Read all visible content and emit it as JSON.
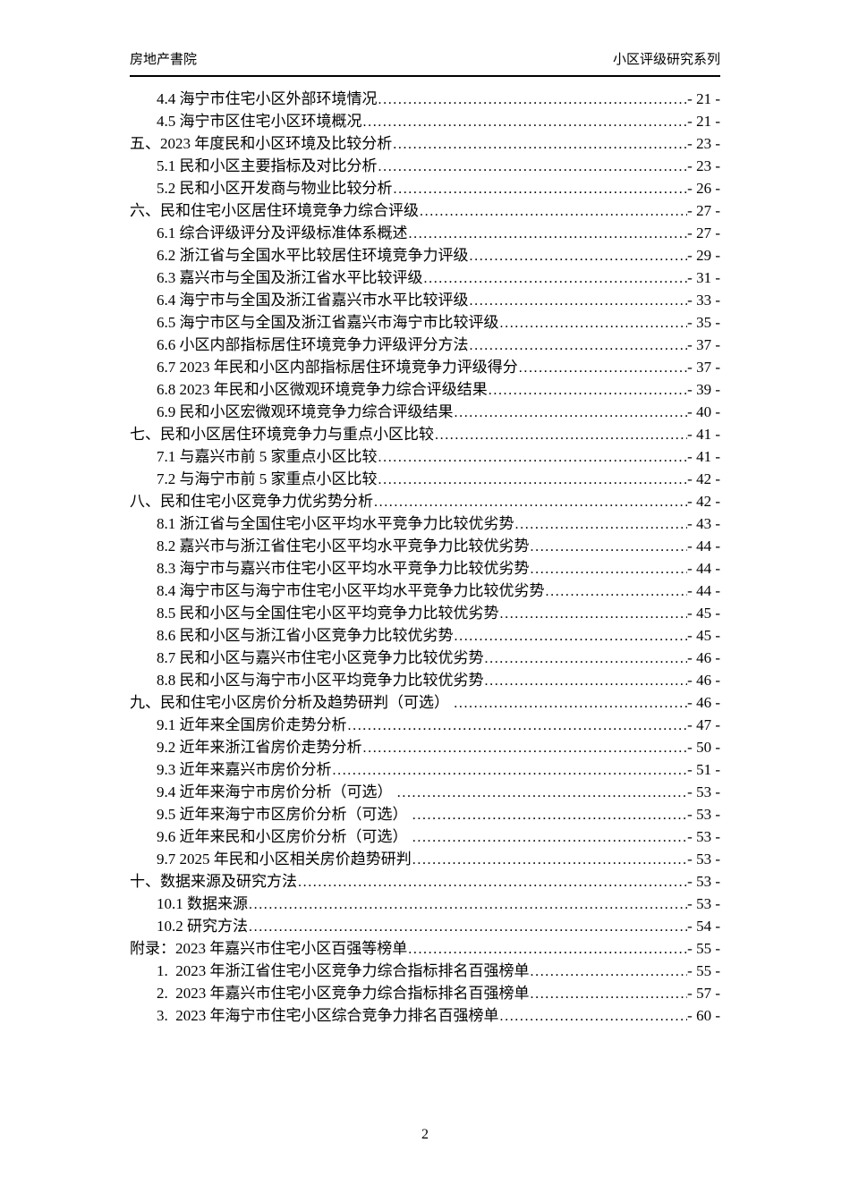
{
  "header": {
    "left": "房地产書院",
    "right": "小区评级研究系列"
  },
  "toc": {
    "entries": [
      {
        "label": "4.4 海宁市住宅小区外部环境情况",
        "page": "- 21 -",
        "level": "sub"
      },
      {
        "label": "4.5 海宁市区住宅小区环境概况",
        "page": "- 21 -",
        "level": "sub"
      },
      {
        "label": "五、2023 年度民和小区环境及比较分析",
        "page": "- 23 -",
        "level": "top"
      },
      {
        "label": "5.1 民和小区主要指标及对比分析",
        "page": "- 23 -",
        "level": "sub"
      },
      {
        "label": "5.2 民和小区开发商与物业比较分析",
        "page": "- 26 -",
        "level": "sub"
      },
      {
        "label": "六、民和住宅小区居住环境竞争力综合评级",
        "page": "- 27 -",
        "level": "top"
      },
      {
        "label": "6.1 综合评级评分及评级标准体系概述",
        "page": "- 27 -",
        "level": "sub"
      },
      {
        "label": "6.2 浙江省与全国水平比较居住环境竞争力评级",
        "page": "- 29 -",
        "level": "sub"
      },
      {
        "label": "6.3 嘉兴市与全国及浙江省水平比较评级",
        "page": "- 31 -",
        "level": "sub"
      },
      {
        "label": "6.4 海宁市与全国及浙江省嘉兴市水平比较评级",
        "page": "- 33 -",
        "level": "sub"
      },
      {
        "label": "6.5 海宁市区与全国及浙江省嘉兴市海宁市比较评级",
        "page": "- 35 -",
        "level": "sub"
      },
      {
        "label": "6.6 小区内部指标居住环境竞争力评级评分方法",
        "page": "- 37 -",
        "level": "sub"
      },
      {
        "label": "6.7 2023 年民和小区内部指标居住环境竞争力评级得分",
        "page": "- 37 -",
        "level": "sub"
      },
      {
        "label": "6.8 2023 年民和小区微观环境竞争力综合评级结果",
        "page": "- 39 -",
        "level": "sub"
      },
      {
        "label": "6.9 民和小区宏微观环境竞争力综合评级结果",
        "page": "- 40 -",
        "level": "sub"
      },
      {
        "label": "七、民和小区居住环境竞争力与重点小区比较",
        "page": "- 41 -",
        "level": "top"
      },
      {
        "label": "7.1 与嘉兴市前 5 家重点小区比较",
        "page": "- 41 -",
        "level": "sub"
      },
      {
        "label": "7.2 与海宁市前 5 家重点小区比较",
        "page": "- 42 -",
        "level": "sub"
      },
      {
        "label": "八、民和住宅小区竞争力优劣势分析",
        "page": "- 42 -",
        "level": "top"
      },
      {
        "label": "8.1 浙江省与全国住宅小区平均水平竞争力比较优劣势",
        "page": "- 43 -",
        "level": "sub"
      },
      {
        "label": "8.2 嘉兴市与浙江省住宅小区平均水平竞争力比较优劣势",
        "page": "- 44 -",
        "level": "sub"
      },
      {
        "label": "8.3 海宁市与嘉兴市住宅小区平均水平竞争力比较优劣势",
        "page": "- 44 -",
        "level": "sub"
      },
      {
        "label": "8.4 海宁市区与海宁市住宅小区平均水平竞争力比较优劣势",
        "page": "- 44 -",
        "level": "sub"
      },
      {
        "label": "8.5 民和小区与全国住宅小区平均竞争力比较优劣势",
        "page": "- 45 -",
        "level": "sub"
      },
      {
        "label": "8.6 民和小区与浙江省小区竞争力比较优劣势",
        "page": "- 45 -",
        "level": "sub"
      },
      {
        "label": "8.7 民和小区与嘉兴市住宅小区竞争力比较优劣势",
        "page": "- 46 -",
        "level": "sub"
      },
      {
        "label": "8.8 民和小区与海宁市小区平均竞争力比较优劣势",
        "page": "- 46 -",
        "level": "sub"
      },
      {
        "label": "九、民和住宅小区房价分析及趋势研判（可选） ",
        "page": "- 46 -",
        "level": "top"
      },
      {
        "label": "9.1 近年来全国房价走势分析",
        "page": "- 47 -",
        "level": "sub"
      },
      {
        "label": "9.2 近年来浙江省房价走势分析",
        "page": "- 50 -",
        "level": "sub"
      },
      {
        "label": "9.3 近年来嘉兴市房价分析",
        "page": "- 51 -",
        "level": "sub"
      },
      {
        "label": "9.4 近年来海宁市房价分析（可选） ",
        "page": "- 53 -",
        "level": "sub"
      },
      {
        "label": "9.5 近年来海宁市区房价分析（可选） ",
        "page": "- 53 -",
        "level": "sub"
      },
      {
        "label": "9.6 近年来民和小区房价分析（可选） ",
        "page": "- 53 -",
        "level": "sub"
      },
      {
        "label": "9.7 2025 年民和小区相关房价趋势研判",
        "page": "- 53 -",
        "level": "sub"
      },
      {
        "label": "十、数据来源及研究方法",
        "page": "- 53 -",
        "level": "top"
      },
      {
        "label": "10.1 数据来源",
        "page": "- 53 -",
        "level": "sub"
      },
      {
        "label": "10.2 研究方法",
        "page": "- 54 -",
        "level": "sub"
      },
      {
        "label": "附录：2023 年嘉兴市住宅小区百强等榜单",
        "page": "- 55 -",
        "level": "top"
      },
      {
        "label": "1.  2023 年浙江省住宅小区竞争力综合指标排名百强榜单",
        "page": "- 55 -",
        "level": "sub"
      },
      {
        "label": "2.  2023 年嘉兴市住宅小区竞争力综合指标排名百强榜单",
        "page": "- 57 -",
        "level": "sub"
      },
      {
        "label": "3.  2023 年海宁市住宅小区综合竞争力排名百强榜单",
        "page": "- 60 -",
        "level": "sub"
      }
    ]
  },
  "footer": {
    "page_number": "2"
  }
}
